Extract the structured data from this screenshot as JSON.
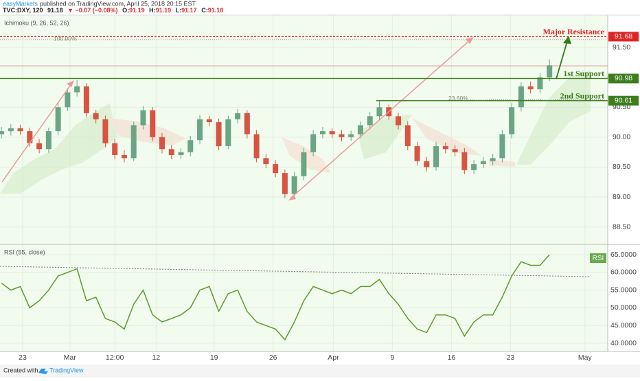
{
  "header": {
    "author": "easyMarkets",
    "published": "published on TradingView.com, April 25, 2018 20:15 EST",
    "symbol": "TVC:DXY, 120",
    "price": "91.18",
    "change": "▼ −0.07 (−0.08%)",
    "ohlc": [
      {
        "key": "O:",
        "value": "91.19"
      },
      {
        "key": "H:",
        "value": "91.19"
      },
      {
        "key": "L:",
        "value": "91.17"
      },
      {
        "key": "C:",
        "value": "91.18"
      }
    ]
  },
  "footer": {
    "created": "Created with",
    "brand": "TradingView"
  },
  "chart_data": {
    "type": "candlestick",
    "indicator": "Ichimoku (9, 26, 52, 26)",
    "up_color": "#6ba583",
    "down_color": "#d75442",
    "grid": true,
    "x": [
      -1.8,
      -1,
      -0.2,
      0.6,
      1.4,
      2.2,
      3,
      3.8,
      4.6,
      5.4,
      6.2,
      7,
      7.8,
      8.6,
      9.4,
      10.2,
      11,
      11.8,
      12.6,
      13.4,
      14.2,
      15,
      15.8,
      16.6,
      17.4,
      18.2,
      19,
      19.8,
      20.6,
      21.4,
      22.2,
      23,
      23.8,
      24.6,
      25.4,
      26.2,
      27,
      27.8,
      28.6,
      29.4,
      30.2,
      31,
      31.8,
      32.6,
      33.4,
      34.2,
      35,
      35.8,
      36.6,
      37.4,
      38.2,
      39,
      39.8,
      40.6,
      41.4,
      42.2,
      43,
      43.8,
      44.6
    ],
    "open": [
      90.05,
      90.1,
      90.15,
      90.1,
      89.9,
      89.8,
      90.1,
      90.5,
      90.75,
      90.85,
      90.4,
      90.3,
      89.9,
      89.7,
      89.65,
      90.2,
      90.45,
      90.0,
      89.8,
      89.7,
      89.75,
      89.95,
      90.3,
      90.25,
      89.85,
      90.3,
      90.4,
      90.05,
      89.65,
      89.55,
      89.4,
      89.05,
      89.35,
      89.75,
      90.05,
      90.1,
      90.05,
      90.0,
      90.05,
      90.2,
      90.35,
      90.5,
      90.35,
      90.2,
      89.85,
      89.6,
      89.5,
      89.85,
      89.8,
      89.75,
      89.45,
      89.55,
      89.6,
      89.65,
      90.05,
      90.5,
      90.85,
      90.8,
      91.0
    ],
    "high": [
      90.17,
      90.22,
      90.21,
      90.16,
      89.97,
      90.16,
      90.57,
      90.82,
      90.95,
      90.9,
      90.46,
      90.36,
      89.97,
      89.78,
      90.26,
      90.52,
      90.5,
      90.07,
      89.87,
      89.82,
      90.02,
      90.37,
      90.36,
      90.31,
      90.36,
      90.47,
      90.45,
      90.12,
      89.72,
      89.62,
      89.46,
      89.42,
      89.82,
      90.12,
      90.17,
      90.15,
      90.12,
      90.11,
      90.26,
      90.42,
      90.6,
      90.55,
      90.41,
      90.27,
      89.92,
      89.67,
      89.92,
      89.91,
      89.87,
      89.82,
      89.62,
      89.67,
      89.72,
      90.12,
      90.57,
      90.92,
      90.93,
      91.07,
      91.3
    ],
    "low": [
      89.98,
      90.03,
      90.04,
      89.84,
      89.73,
      89.74,
      90.03,
      90.44,
      90.68,
      90.33,
      90.23,
      89.83,
      89.63,
      89.58,
      89.6,
      90.13,
      89.93,
      89.73,
      89.63,
      89.64,
      89.68,
      89.88,
      90.18,
      89.78,
      89.8,
      90.23,
      89.98,
      89.58,
      89.48,
      89.33,
      88.98,
      88.99,
      89.28,
      89.68,
      89.98,
      89.99,
      89.93,
      89.94,
      89.98,
      90.13,
      90.28,
      90.29,
      90.13,
      89.78,
      89.53,
      89.43,
      89.44,
      89.73,
      89.68,
      89.38,
      89.39,
      89.48,
      89.53,
      89.58,
      89.98,
      90.43,
      90.73,
      90.74,
      90.94
    ],
    "close": [
      90.1,
      90.15,
      90.1,
      89.9,
      89.8,
      90.1,
      90.5,
      90.75,
      90.85,
      90.4,
      90.3,
      89.9,
      89.7,
      89.65,
      90.2,
      90.45,
      90.0,
      89.8,
      89.7,
      89.75,
      89.95,
      90.3,
      90.25,
      89.85,
      90.3,
      90.4,
      90.05,
      89.65,
      89.55,
      89.4,
      89.05,
      89.35,
      89.75,
      90.05,
      90.1,
      90.05,
      90.0,
      90.05,
      90.2,
      90.35,
      90.5,
      90.35,
      90.2,
      89.85,
      89.6,
      89.5,
      89.85,
      89.8,
      89.75,
      89.45,
      89.55,
      89.6,
      89.65,
      90.05,
      90.5,
      90.85,
      90.8,
      91.0,
      91.2
    ],
    "xlim": [
      -1.92,
      49.53
    ],
    "xticks": [
      {
        "value": 0,
        "label": "23"
      },
      {
        "value": 4,
        "label": "Mar"
      },
      {
        "value": 7.8,
        "label": "12:00"
      },
      {
        "value": 11.3,
        "label": "12"
      },
      {
        "value": 16.2,
        "label": "19"
      },
      {
        "value": 21.2,
        "label": "26"
      },
      {
        "value": 26.3,
        "label": "Apr"
      },
      {
        "value": 31.3,
        "label": "9"
      },
      {
        "value": 36.3,
        "label": "16"
      },
      {
        "value": 41.3,
        "label": "23"
      },
      {
        "value": 47.6,
        "label": "May"
      }
    ],
    "ylim": [
      88.22,
      92.04
    ],
    "yticks": [
      {
        "value": 88.5,
        "label": "88.50"
      },
      {
        "value": 89,
        "label": "89.00"
      },
      {
        "value": 89.5,
        "label": "89.50"
      },
      {
        "value": 90,
        "label": "90.00"
      },
      {
        "value": 90.5,
        "label": "90.50"
      },
      {
        "value": 91.5,
        "label": "91.50"
      }
    ],
    "levels": [
      {
        "name": "Major Resistance",
        "value": 91.68,
        "color": "#e02424"
      },
      {
        "name": "1st Support",
        "value": 90.98,
        "color": "#3d7d1c"
      },
      {
        "name": "2nd Support",
        "value": 90.61,
        "color": "#3d7d1c"
      }
    ],
    "fib": [
      {
        "label": "100.00%",
        "price": 91.63
      },
      {
        "label": "23.60%",
        "price": 90.63
      }
    ],
    "rsi": {
      "title": "RSI (55, close)",
      "label": "RSI",
      "color": "#5e9a2e",
      "values": [
        57,
        55,
        56,
        50,
        52,
        55,
        59,
        60,
        61,
        52,
        53,
        47,
        46,
        44,
        51,
        55,
        48,
        46,
        47,
        48,
        50,
        55,
        56,
        49,
        54,
        55,
        49,
        46,
        45,
        44,
        41,
        46,
        52,
        56,
        55,
        54,
        55,
        54,
        56,
        56,
        58,
        54,
        51,
        47,
        44,
        43,
        48,
        48,
        47,
        42,
        46,
        48,
        48,
        53,
        59,
        63,
        62,
        62,
        65
      ],
      "ylim": [
        37.67,
        67.52
      ],
      "yticks": [
        {
          "value": 40,
          "label": "40.0000"
        },
        {
          "value": 45,
          "label": "45.0000"
        },
        {
          "value": 50,
          "label": "50.0000"
        },
        {
          "value": 55,
          "label": "55.0000"
        },
        {
          "value": 60,
          "label": "60.0000"
        },
        {
          "value": 65,
          "label": "65.0000"
        }
      ]
    }
  }
}
